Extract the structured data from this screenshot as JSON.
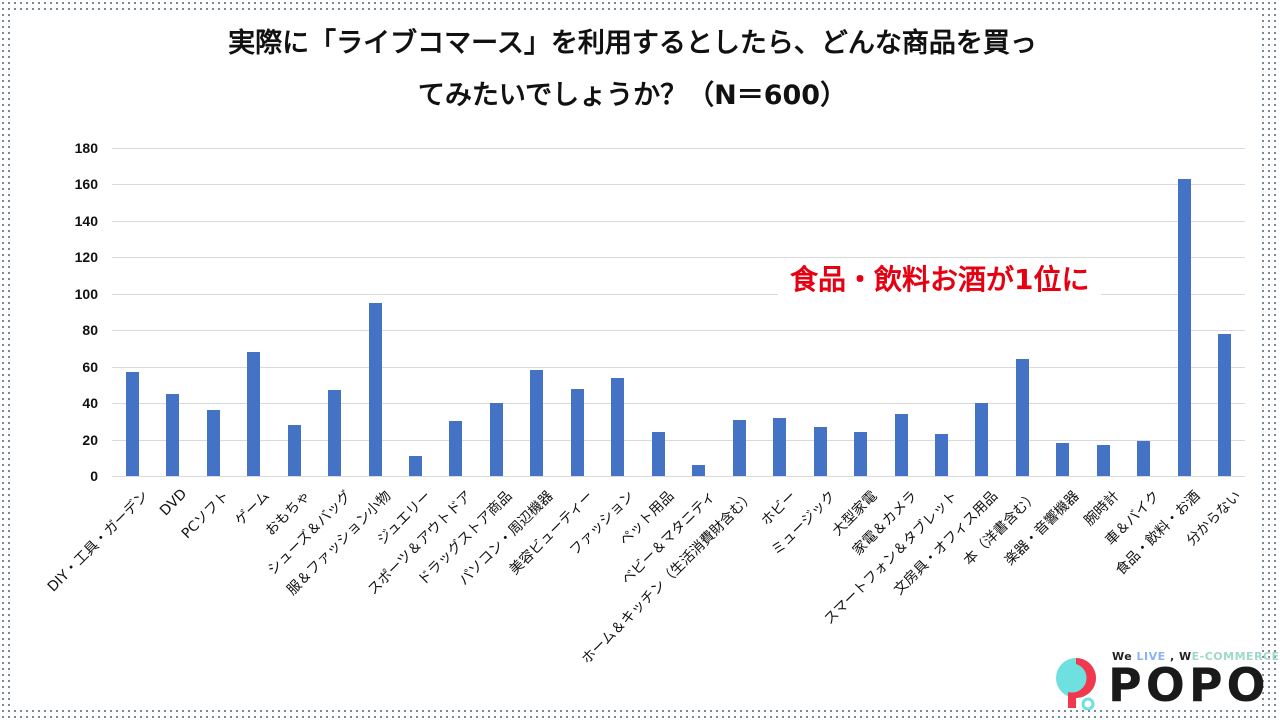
{
  "title_lines": [
    "実際に「ライブコマース」を利用するとしたら、どんな商品を買っ",
    "てみたいでしょうか？（N＝600）"
  ],
  "annotation": "食品・飲料お酒が1位に",
  "logo": {
    "tagline_parts": [
      "We ",
      "LIVE",
      " , W",
      "E-COMMERCE"
    ],
    "brand": "POPO",
    "colors": {
      "cyan": "#6ee0e0",
      "red": "#f2384e"
    }
  },
  "colors": {
    "bar": "#4472c4",
    "annotation": "#e60012",
    "grid": "#d9d9d9"
  },
  "chart_data": {
    "type": "bar",
    "title": "実際に「ライブコマース」を利用するとしたら、どんな商品を買ってみたいでしょうか？（N＝600）",
    "xlabel": "",
    "ylabel": "",
    "ylim": [
      0,
      180
    ],
    "yticks": [
      0,
      20,
      40,
      60,
      80,
      100,
      120,
      140,
      160,
      180
    ],
    "grid": true,
    "legend": null,
    "categories": [
      "DIY・工具・ガーデン",
      "DVD",
      "PCソフト",
      "ゲーム",
      "おもちゃ",
      "シューズ＆バッグ",
      "服＆ファッション小物",
      "ジュエリー",
      "スポーツ＆アウトドア",
      "ドラッグストア商品",
      "パソコン・周辺機器",
      "美容ビューティー",
      "ファッション",
      "ペット用品",
      "ベビー＆マタニティ",
      "ホーム＆キッチン（生活消費財含む）",
      "ホビー",
      "ミュージック",
      "大型家電",
      "家電＆カメラ",
      "スマートフォン＆タブレット",
      "文房具・オフィス用品",
      "本（洋書含む）",
      "楽器・音響機器",
      "腕時計",
      "車＆バイク",
      "食品・飲料・お酒",
      "分からない"
    ],
    "values": [
      57,
      45,
      36,
      68,
      28,
      47,
      95,
      11,
      30,
      40,
      58,
      48,
      54,
      24,
      6,
      31,
      32,
      27,
      24,
      34,
      23,
      40,
      64,
      18,
      17,
      19,
      163,
      78
    ],
    "annotations": [
      {
        "text": "食品・飲料お酒が1位に",
        "color": "#e60012"
      }
    ]
  }
}
